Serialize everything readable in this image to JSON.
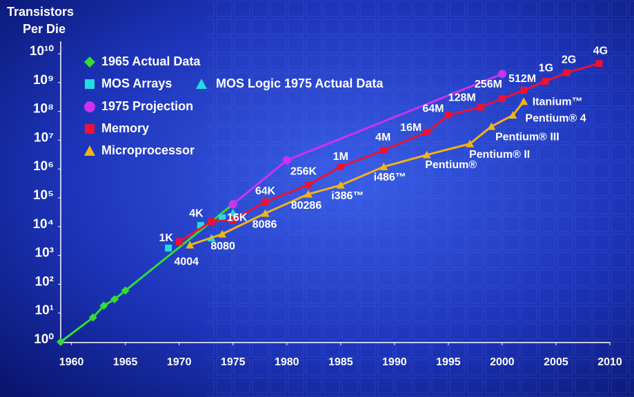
{
  "chart_data": {
    "type": "line",
    "ylabel": [
      "Transistors",
      "Per Die"
    ],
    "log_y": true,
    "xlim": [
      1959,
      2010
    ],
    "xticks": [
      1960,
      1965,
      1970,
      1975,
      1980,
      1985,
      1990,
      1995,
      2000,
      2005,
      2010
    ],
    "ylim": [
      1,
      10000000000
    ],
    "yticks": [
      {
        "value": 1,
        "label": "10⁰"
      },
      {
        "value": 10,
        "label": "10¹"
      },
      {
        "value": 100,
        "label": "10²"
      },
      {
        "value": 1000,
        "label": "10³"
      },
      {
        "value": 10000,
        "label": "10⁴"
      },
      {
        "value": 100000,
        "label": "10⁵"
      },
      {
        "value": 1000000,
        "label": "10⁶"
      },
      {
        "value": 10000000,
        "label": "10⁷"
      },
      {
        "value": 100000000,
        "label": "10⁸"
      },
      {
        "value": 1000000000,
        "label": "10⁹"
      },
      {
        "value": 10000000000,
        "label": "10¹⁰"
      }
    ],
    "series": [
      {
        "name": "1965 Actual Data",
        "color": "#33dd33",
        "marker": "diamond",
        "line": true,
        "x": [
          1959,
          1962,
          1963,
          1964,
          1965,
          1975
        ],
        "values": [
          1,
          7,
          18,
          30,
          60,
          60000
        ]
      },
      {
        "name": "MOS Arrays",
        "color": "#22dde0",
        "marker": "square",
        "line": false,
        "x": [
          1969,
          1972,
          1974
        ],
        "values": [
          1800,
          11000,
          20000
        ]
      },
      {
        "name": "MOS Logic 1975 Actual Data",
        "color": "#22dde0",
        "marker": "triangle",
        "line": false,
        "x": [
          1973,
          1975
        ],
        "values": [
          4000,
          30000
        ]
      },
      {
        "name": "1975 Projection",
        "color": "#cc33ee",
        "marker": "circle",
        "line": true,
        "x": [
          1975,
          1980,
          2000
        ],
        "values": [
          60000,
          2000000,
          2000000000
        ]
      },
      {
        "name": "Memory",
        "color": "#ee1133",
        "marker": "square",
        "line": true,
        "x": [
          1970,
          1973,
          1975,
          1978,
          1982,
          1985,
          1989,
          1993,
          1995,
          1998,
          2000,
          2002,
          2004,
          2006,
          2009
        ],
        "values": [
          3000,
          15000,
          17000,
          72000,
          280000,
          1200000,
          4500000,
          19000000,
          74000000,
          140000000,
          280000000,
          540000000,
          1100000000,
          2200000000,
          4600000000
        ],
        "point_labels": [
          "1K",
          "4K",
          "16K",
          "64K",
          "256K",
          "1M",
          "4M",
          "16M",
          "64M",
          "128M",
          "256M",
          "512M",
          "1G",
          "2G",
          "4G"
        ]
      },
      {
        "name": "Microprocessor",
        "color": "#f5b316",
        "marker": "triangle",
        "line": true,
        "x": [
          1971,
          1974,
          1978,
          1982,
          1985,
          1989,
          1993,
          1997,
          1999,
          2001,
          2002
        ],
        "values": [
          2300,
          5500,
          29000,
          134000,
          275000,
          1200000,
          3100000,
          7500000,
          30000000,
          74000000,
          220000000
        ],
        "point_labels": [
          "4004",
          "8080",
          "8086",
          "80286",
          "i386™",
          "i486™",
          "Pentium®",
          "Pentium® II",
          "Pentium® III",
          "Pentium® 4",
          "Itanium™"
        ]
      }
    ]
  }
}
